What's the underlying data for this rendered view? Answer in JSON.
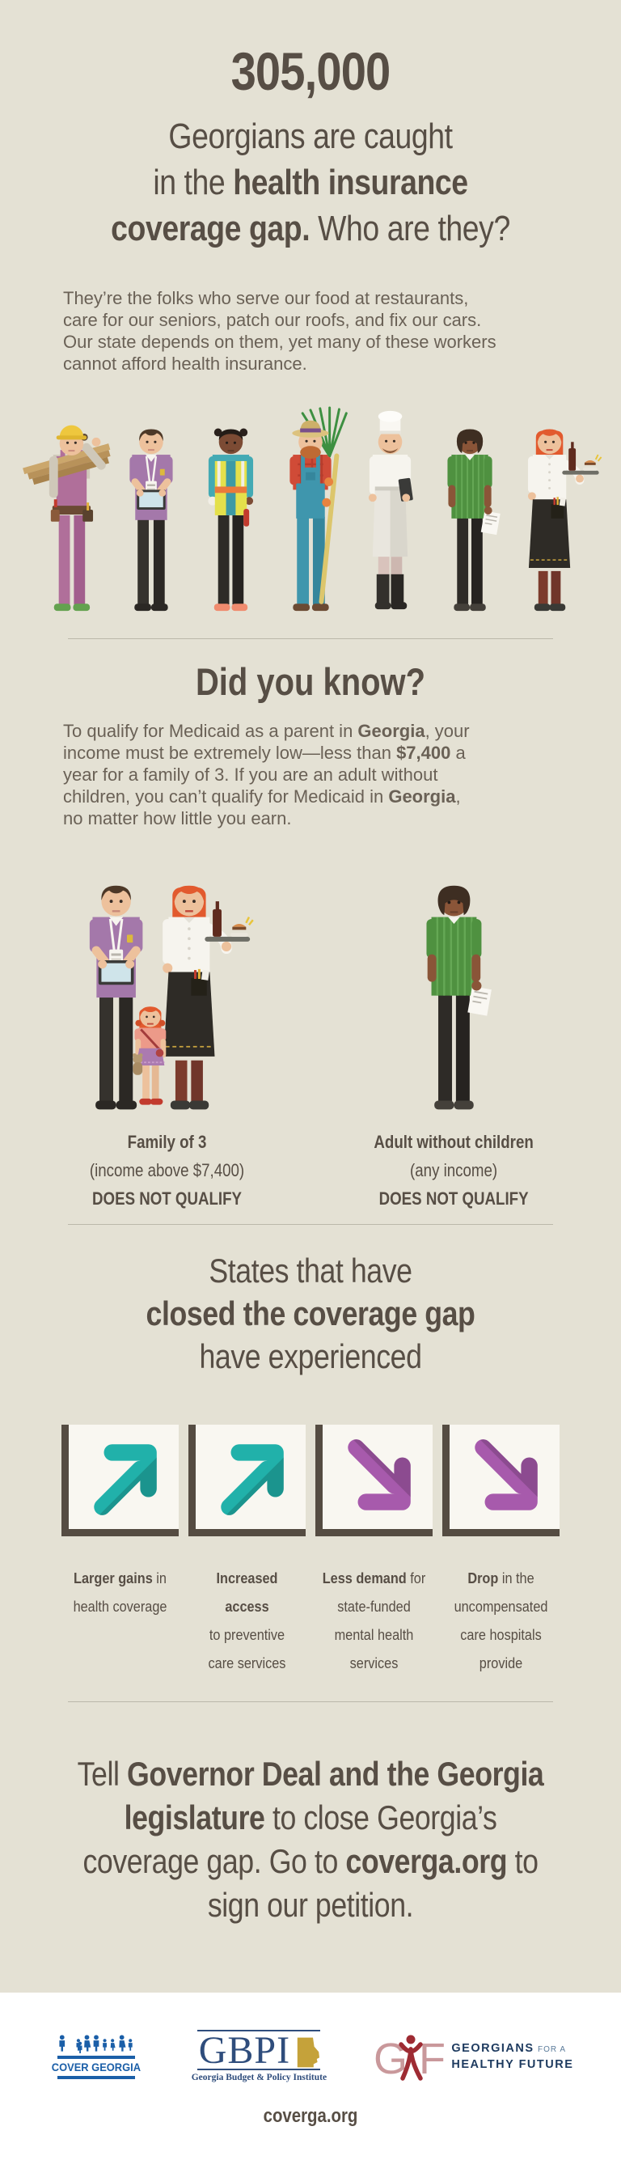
{
  "colors": {
    "bg": "#e4e1d4",
    "heading": "#574e45",
    "body_text": "#6a6156",
    "teal": "#21b1aa",
    "purple": "#a75aac",
    "box_bg": "#f9f7f1",
    "box_border": "#554c42",
    "divider": "#bbb8aa",
    "footer_bg": "#ffffff",
    "cover_blue": "#1b5fa8",
    "gbpi_blue": "#2f4d7c",
    "gbpi_gold": "#c5a23a",
    "ghf_red": "#9e2b33",
    "ghf_pink": "#c9989b",
    "ghf_navy": "#1d3a5f"
  },
  "hero": {
    "stat": "305,000",
    "headline_lines": [
      [
        {
          "t": "Georgians are caught"
        }
      ],
      [
        {
          "t": "in the "
        },
        {
          "t": "health insurance",
          "b": true
        }
      ],
      [
        {
          "t": "coverage gap.",
          "b": true
        },
        {
          "t": " Who are they?"
        }
      ]
    ],
    "intro_lines": [
      [
        {
          "t": "They’re the folks who serve our food at restaurants,"
        }
      ],
      [
        {
          "t": "care for our seniors, patch our roofs, and fix our cars."
        }
      ],
      [
        {
          "t": "Our state depends on them, yet many of these workers"
        }
      ],
      [
        {
          "t": "cannot afford health insurance."
        }
      ]
    ]
  },
  "did_you_know": {
    "heading": "Did you know?",
    "paragraph_lines": [
      [
        {
          "t": "To qualify for Medicaid as a parent in "
        },
        {
          "t": "Georgia",
          "b": true
        },
        {
          "t": ", your"
        }
      ],
      [
        {
          "t": "income must be extremely low—less than "
        },
        {
          "t": "$7,400",
          "b": true
        },
        {
          "t": " a"
        }
      ],
      [
        {
          "t": "year for a family of 3. If you are an adult without"
        }
      ],
      [
        {
          "t": "children, you can’t qualify for Medicaid in "
        },
        {
          "t": "Georgia",
          "b": true
        },
        {
          "t": ","
        }
      ],
      [
        {
          "t": "no matter how little you earn."
        }
      ]
    ]
  },
  "qualify": {
    "family": {
      "title": "Family of 3",
      "subtitle": "(income above $7,400)",
      "status": "DOES NOT QUALIFY"
    },
    "adult": {
      "title": "Adult without children",
      "subtitle": "(any income)",
      "status": "DOES NOT QUALIFY"
    }
  },
  "states": {
    "heading_lines": [
      [
        {
          "t": "States that have"
        }
      ],
      [
        {
          "t": "closed the coverage gap",
          "b": true
        }
      ],
      [
        {
          "t": "have experienced"
        }
      ]
    ],
    "items": [
      {
        "direction": "up",
        "icon": "trend-up-arrow",
        "label_lines": [
          [
            {
              "t": "Larger gains",
              "b": true
            },
            {
              "t": " in"
            }
          ],
          [
            {
              "t": "health coverage"
            }
          ]
        ]
      },
      {
        "direction": "up",
        "icon": "trend-up-arrow",
        "label_lines": [
          [
            {
              "t": "Increased access",
              "b": true
            }
          ],
          [
            {
              "t": "to preventive"
            }
          ],
          [
            {
              "t": "care services"
            }
          ]
        ]
      },
      {
        "direction": "down",
        "icon": "trend-down-arrow",
        "label_lines": [
          [
            {
              "t": "Less demand",
              "b": true
            },
            {
              "t": " for"
            }
          ],
          [
            {
              "t": "state-funded"
            }
          ],
          [
            {
              "t": "mental health"
            }
          ],
          [
            {
              "t": "services"
            }
          ]
        ]
      },
      {
        "direction": "down",
        "icon": "trend-down-arrow",
        "label_lines": [
          [
            {
              "t": "Drop",
              "b": true
            },
            {
              "t": " in the"
            }
          ],
          [
            {
              "t": "uncompensated"
            }
          ],
          [
            {
              "t": "care hospitals"
            }
          ],
          [
            {
              "t": "provide"
            }
          ]
        ]
      }
    ]
  },
  "cta": {
    "lines": [
      [
        {
          "t": "Tell "
        },
        {
          "t": "Governor Deal and the Georgia",
          "b": true
        }
      ],
      [
        {
          "t": "legislature",
          "b": true
        },
        {
          "t": " to close Georgia’s"
        }
      ],
      [
        {
          "t": "coverage gap. Go to "
        },
        {
          "t": "coverga.org",
          "b": true
        },
        {
          "t": " to"
        }
      ],
      [
        {
          "t": "sign our petition."
        }
      ]
    ]
  },
  "footer": {
    "cover_georgia": {
      "label": "COVER GEORGIA"
    },
    "gbpi": {
      "acronym": "GBPI",
      "subtitle": "Georgia Budget & Policy Institute"
    },
    "ghf": {
      "letter_g": "G",
      "letter_f": "F",
      "line1_bold": "GEORGIANS",
      "line1_rest": "FOR A",
      "line2_bold": "HEALTHY FUTURE"
    },
    "url": "coverga.org"
  }
}
